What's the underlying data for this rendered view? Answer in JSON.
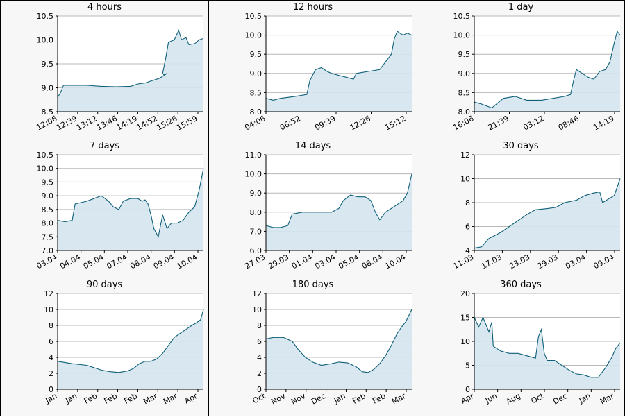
{
  "colors": {
    "line": "#0e5f78",
    "fill": "#d5e6ee",
    "grid": "#b8b8b8",
    "panel_bg": "#f7f7f7",
    "border": "#000000"
  },
  "chart_data": [
    {
      "type": "area",
      "title": "4 hours",
      "ylim": [
        8.5,
        10.5
      ],
      "yticks": [
        "8.5",
        "9.0",
        "9.5",
        "10.0",
        "10.5"
      ],
      "xticks": [
        "12:06",
        "12:39",
        "13:12",
        "13:46",
        "14:19",
        "14:52",
        "15:26",
        "15:59"
      ],
      "points": [
        [
          0,
          8.8
        ],
        [
          0.02,
          8.9
        ],
        [
          0.04,
          9.05
        ],
        [
          0.1,
          9.05
        ],
        [
          0.2,
          9.05
        ],
        [
          0.3,
          9.03
        ],
        [
          0.4,
          9.02
        ],
        [
          0.5,
          9.03
        ],
        [
          0.55,
          9.08
        ],
        [
          0.6,
          9.1
        ],
        [
          0.65,
          9.15
        ],
        [
          0.7,
          9.2
        ],
        [
          0.75,
          9.3
        ],
        [
          0.73,
          9.27
        ],
        [
          0.72,
          9.3
        ],
        [
          0.74,
          9.6
        ],
        [
          0.76,
          9.95
        ],
        [
          0.8,
          10.0
        ],
        [
          0.83,
          10.2
        ],
        [
          0.85,
          10.0
        ],
        [
          0.88,
          10.05
        ],
        [
          0.9,
          9.9
        ],
        [
          0.94,
          9.92
        ],
        [
          0.97,
          10.0
        ],
        [
          1.0,
          10.03
        ]
      ]
    },
    {
      "type": "area",
      "title": "12 hours",
      "ylim": [
        8.0,
        10.5
      ],
      "yticks": [
        "8.0",
        "8.5",
        "9.0",
        "9.5",
        "10.0",
        "10.5"
      ],
      "xticks": [
        "04:06",
        "06:52",
        "09:39",
        "12:26",
        "15:12"
      ],
      "points": [
        [
          0,
          8.35
        ],
        [
          0.05,
          8.3
        ],
        [
          0.1,
          8.35
        ],
        [
          0.2,
          8.4
        ],
        [
          0.28,
          8.45
        ],
        [
          0.3,
          8.8
        ],
        [
          0.34,
          9.1
        ],
        [
          0.38,
          9.15
        ],
        [
          0.42,
          9.05
        ],
        [
          0.45,
          9.0
        ],
        [
          0.5,
          8.95
        ],
        [
          0.55,
          8.9
        ],
        [
          0.6,
          8.85
        ],
        [
          0.62,
          9.0
        ],
        [
          0.7,
          9.05
        ],
        [
          0.78,
          9.1
        ],
        [
          0.82,
          9.3
        ],
        [
          0.86,
          9.5
        ],
        [
          0.88,
          9.9
        ],
        [
          0.9,
          10.1
        ],
        [
          0.94,
          10.0
        ],
        [
          0.97,
          10.05
        ],
        [
          1.0,
          10.0
        ]
      ]
    },
    {
      "type": "area",
      "title": "1 day",
      "ylim": [
        8.0,
        10.5
      ],
      "yticks": [
        "8.0",
        "8.5",
        "9.0",
        "9.5",
        "10.0",
        "10.5"
      ],
      "xticks": [
        "16:06",
        "21:39",
        "03:12",
        "08:46",
        "14:19"
      ],
      "points": [
        [
          0,
          8.25
        ],
        [
          0.05,
          8.2
        ],
        [
          0.12,
          8.1
        ],
        [
          0.2,
          8.35
        ],
        [
          0.28,
          8.4
        ],
        [
          0.36,
          8.3
        ],
        [
          0.46,
          8.3
        ],
        [
          0.54,
          8.35
        ],
        [
          0.62,
          8.4
        ],
        [
          0.66,
          8.45
        ],
        [
          0.68,
          8.8
        ],
        [
          0.7,
          9.1
        ],
        [
          0.74,
          9.0
        ],
        [
          0.78,
          8.9
        ],
        [
          0.82,
          8.85
        ],
        [
          0.86,
          9.05
        ],
        [
          0.9,
          9.1
        ],
        [
          0.93,
          9.3
        ],
        [
          0.96,
          9.8
        ],
        [
          0.98,
          10.1
        ],
        [
          1.0,
          10.0
        ]
      ]
    },
    {
      "type": "area",
      "title": "7 days",
      "ylim": [
        7.0,
        10.5
      ],
      "yticks": [
        "7.0",
        "7.5",
        "8.0",
        "8.5",
        "9.0",
        "9.5",
        "10.0",
        "10.5"
      ],
      "xticks": [
        "03.04",
        "04.04",
        "05.04",
        "07.04",
        "08.04",
        "09.04",
        "10.04"
      ],
      "points": [
        [
          0,
          8.1
        ],
        [
          0.05,
          8.05
        ],
        [
          0.1,
          8.1
        ],
        [
          0.12,
          8.7
        ],
        [
          0.2,
          8.8
        ],
        [
          0.3,
          9.0
        ],
        [
          0.35,
          8.8
        ],
        [
          0.38,
          8.6
        ],
        [
          0.42,
          8.5
        ],
        [
          0.45,
          8.8
        ],
        [
          0.5,
          8.9
        ],
        [
          0.55,
          8.9
        ],
        [
          0.58,
          8.8
        ],
        [
          0.6,
          8.85
        ],
        [
          0.62,
          8.7
        ],
        [
          0.64,
          8.3
        ],
        [
          0.66,
          7.8
        ],
        [
          0.69,
          7.5
        ],
        [
          0.72,
          8.3
        ],
        [
          0.75,
          7.8
        ],
        [
          0.78,
          8.0
        ],
        [
          0.82,
          8.0
        ],
        [
          0.86,
          8.1
        ],
        [
          0.9,
          8.4
        ],
        [
          0.94,
          8.6
        ],
        [
          0.97,
          9.2
        ],
        [
          1.0,
          10.0
        ]
      ]
    },
    {
      "type": "area",
      "title": "14 days",
      "ylim": [
        6.0,
        11.0
      ],
      "yticks": [
        "6.0",
        "7.0",
        "8.0",
        "9.0",
        "10.0",
        "11.0"
      ],
      "xticks": [
        "27.03",
        "29.03",
        "01.04",
        "03.04",
        "05.04",
        "08.04",
        "10.04"
      ],
      "points": [
        [
          0,
          7.3
        ],
        [
          0.05,
          7.2
        ],
        [
          0.1,
          7.2
        ],
        [
          0.15,
          7.3
        ],
        [
          0.18,
          7.9
        ],
        [
          0.25,
          8.0
        ],
        [
          0.35,
          8.0
        ],
        [
          0.45,
          8.0
        ],
        [
          0.5,
          8.2
        ],
        [
          0.53,
          8.6
        ],
        [
          0.58,
          8.9
        ],
        [
          0.63,
          8.8
        ],
        [
          0.68,
          8.8
        ],
        [
          0.72,
          8.6
        ],
        [
          0.75,
          8.0
        ],
        [
          0.78,
          7.6
        ],
        [
          0.82,
          8.0
        ],
        [
          0.86,
          8.2
        ],
        [
          0.9,
          8.4
        ],
        [
          0.94,
          8.6
        ],
        [
          0.97,
          9.0
        ],
        [
          1.0,
          10.0
        ]
      ]
    },
    {
      "type": "area",
      "title": "30 days",
      "ylim": [
        4,
        12
      ],
      "yticks": [
        "4",
        "6",
        "8",
        "10",
        "12"
      ],
      "xticks": [
        "11.03",
        "17.03",
        "23.03",
        "29.03",
        "03.04",
        "09.04"
      ],
      "points": [
        [
          0,
          4.2
        ],
        [
          0.05,
          4.3
        ],
        [
          0.1,
          5.0
        ],
        [
          0.18,
          5.5
        ],
        [
          0.24,
          6.0
        ],
        [
          0.3,
          6.5
        ],
        [
          0.36,
          7.0
        ],
        [
          0.42,
          7.4
        ],
        [
          0.5,
          7.5
        ],
        [
          0.56,
          7.6
        ],
        [
          0.62,
          8.0
        ],
        [
          0.7,
          8.2
        ],
        [
          0.76,
          8.6
        ],
        [
          0.82,
          8.8
        ],
        [
          0.86,
          8.9
        ],
        [
          0.88,
          8.0
        ],
        [
          0.92,
          8.3
        ],
        [
          0.96,
          8.6
        ],
        [
          1.0,
          10.0
        ]
      ]
    },
    {
      "type": "area",
      "title": "90 days",
      "ylim": [
        0,
        12
      ],
      "yticks": [
        "0",
        "2",
        "4",
        "6",
        "8",
        "10",
        "12"
      ],
      "xticks": [
        "Jan",
        "Jan",
        "Feb",
        "Feb",
        "Feb",
        "Mar",
        "Mar",
        "Apr"
      ],
      "points": [
        [
          0,
          3.5
        ],
        [
          0.1,
          3.2
        ],
        [
          0.2,
          3.0
        ],
        [
          0.25,
          2.7
        ],
        [
          0.3,
          2.4
        ],
        [
          0.36,
          2.2
        ],
        [
          0.42,
          2.1
        ],
        [
          0.48,
          2.3
        ],
        [
          0.52,
          2.6
        ],
        [
          0.56,
          3.2
        ],
        [
          0.6,
          3.5
        ],
        [
          0.64,
          3.5
        ],
        [
          0.68,
          3.8
        ],
        [
          0.72,
          4.5
        ],
        [
          0.76,
          5.5
        ],
        [
          0.8,
          6.5
        ],
        [
          0.84,
          7.0
        ],
        [
          0.88,
          7.5
        ],
        [
          0.92,
          8.0
        ],
        [
          0.95,
          8.3
        ],
        [
          0.98,
          8.7
        ],
        [
          1.0,
          10.0
        ]
      ]
    },
    {
      "type": "area",
      "title": "180 days",
      "ylim": [
        0,
        12
      ],
      "yticks": [
        "0",
        "2",
        "4",
        "6",
        "8",
        "10",
        "12"
      ],
      "xticks": [
        "Oct",
        "Nov",
        "Nov",
        "Dec",
        "Jan",
        "Feb",
        "Feb",
        "Mar"
      ],
      "points": [
        [
          0,
          6.3
        ],
        [
          0.05,
          6.5
        ],
        [
          0.12,
          6.5
        ],
        [
          0.18,
          6.0
        ],
        [
          0.22,
          5.0
        ],
        [
          0.27,
          4.0
        ],
        [
          0.32,
          3.4
        ],
        [
          0.38,
          3.0
        ],
        [
          0.45,
          3.2
        ],
        [
          0.5,
          3.4
        ],
        [
          0.56,
          3.3
        ],
        [
          0.62,
          2.8
        ],
        [
          0.66,
          2.2
        ],
        [
          0.7,
          2.1
        ],
        [
          0.74,
          2.5
        ],
        [
          0.78,
          3.2
        ],
        [
          0.82,
          4.2
        ],
        [
          0.86,
          5.5
        ],
        [
          0.9,
          7.0
        ],
        [
          0.93,
          7.8
        ],
        [
          0.96,
          8.5
        ],
        [
          1.0,
          10.0
        ]
      ]
    },
    {
      "type": "area",
      "title": "360 days",
      "ylim": [
        0,
        20
      ],
      "yticks": [
        "0",
        "5",
        "10",
        "15",
        "20"
      ],
      "xticks": [
        "Apr",
        "Jun",
        "Aug",
        "Oct",
        "Dec",
        "Jan",
        "Mar"
      ],
      "points": [
        [
          0,
          15
        ],
        [
          0.03,
          13
        ],
        [
          0.06,
          15
        ],
        [
          0.1,
          12
        ],
        [
          0.12,
          14
        ],
        [
          0.13,
          9
        ],
        [
          0.18,
          8
        ],
        [
          0.24,
          7.5
        ],
        [
          0.3,
          7.5
        ],
        [
          0.36,
          7
        ],
        [
          0.42,
          6.5
        ],
        [
          0.44,
          11
        ],
        [
          0.46,
          12.5
        ],
        [
          0.48,
          7.5
        ],
        [
          0.5,
          6
        ],
        [
          0.55,
          6
        ],
        [
          0.6,
          5
        ],
        [
          0.65,
          4
        ],
        [
          0.7,
          3.2
        ],
        [
          0.75,
          3
        ],
        [
          0.8,
          2.5
        ],
        [
          0.85,
          2.5
        ],
        [
          0.9,
          4.5
        ],
        [
          0.94,
          6.5
        ],
        [
          0.97,
          8.5
        ],
        [
          1.0,
          9.7
        ]
      ]
    }
  ]
}
